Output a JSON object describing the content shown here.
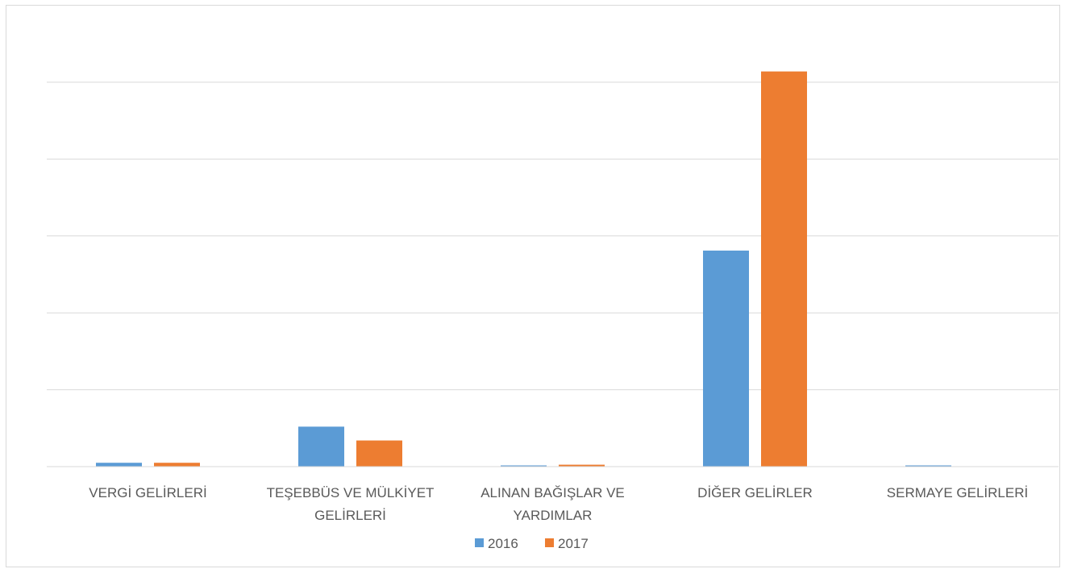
{
  "chart_data": {
    "type": "bar",
    "categories": [
      [
        "VERGİ GELİRLERİ"
      ],
      [
        "TEŞEBBÜS VE MÜLKİYET",
        "GELİRLERİ"
      ],
      [
        "ALINAN BAĞIŞLAR VE",
        "YARDIMLAR"
      ],
      [
        "DİĞER GELİRLER"
      ],
      [
        "SERMAYE GELİRLERİ"
      ]
    ],
    "series": [
      {
        "name": "2016",
        "color": "#5b9bd5",
        "values": [
          0.05,
          0.52,
          0.01,
          2.81,
          0.01
        ]
      },
      {
        "name": "2017",
        "color": "#ed7d31",
        "values": [
          0.05,
          0.34,
          0.025,
          5.14,
          0
        ]
      }
    ],
    "ylim": [
      0,
      6
    ],
    "grid": true,
    "legend_position": "bottom"
  }
}
